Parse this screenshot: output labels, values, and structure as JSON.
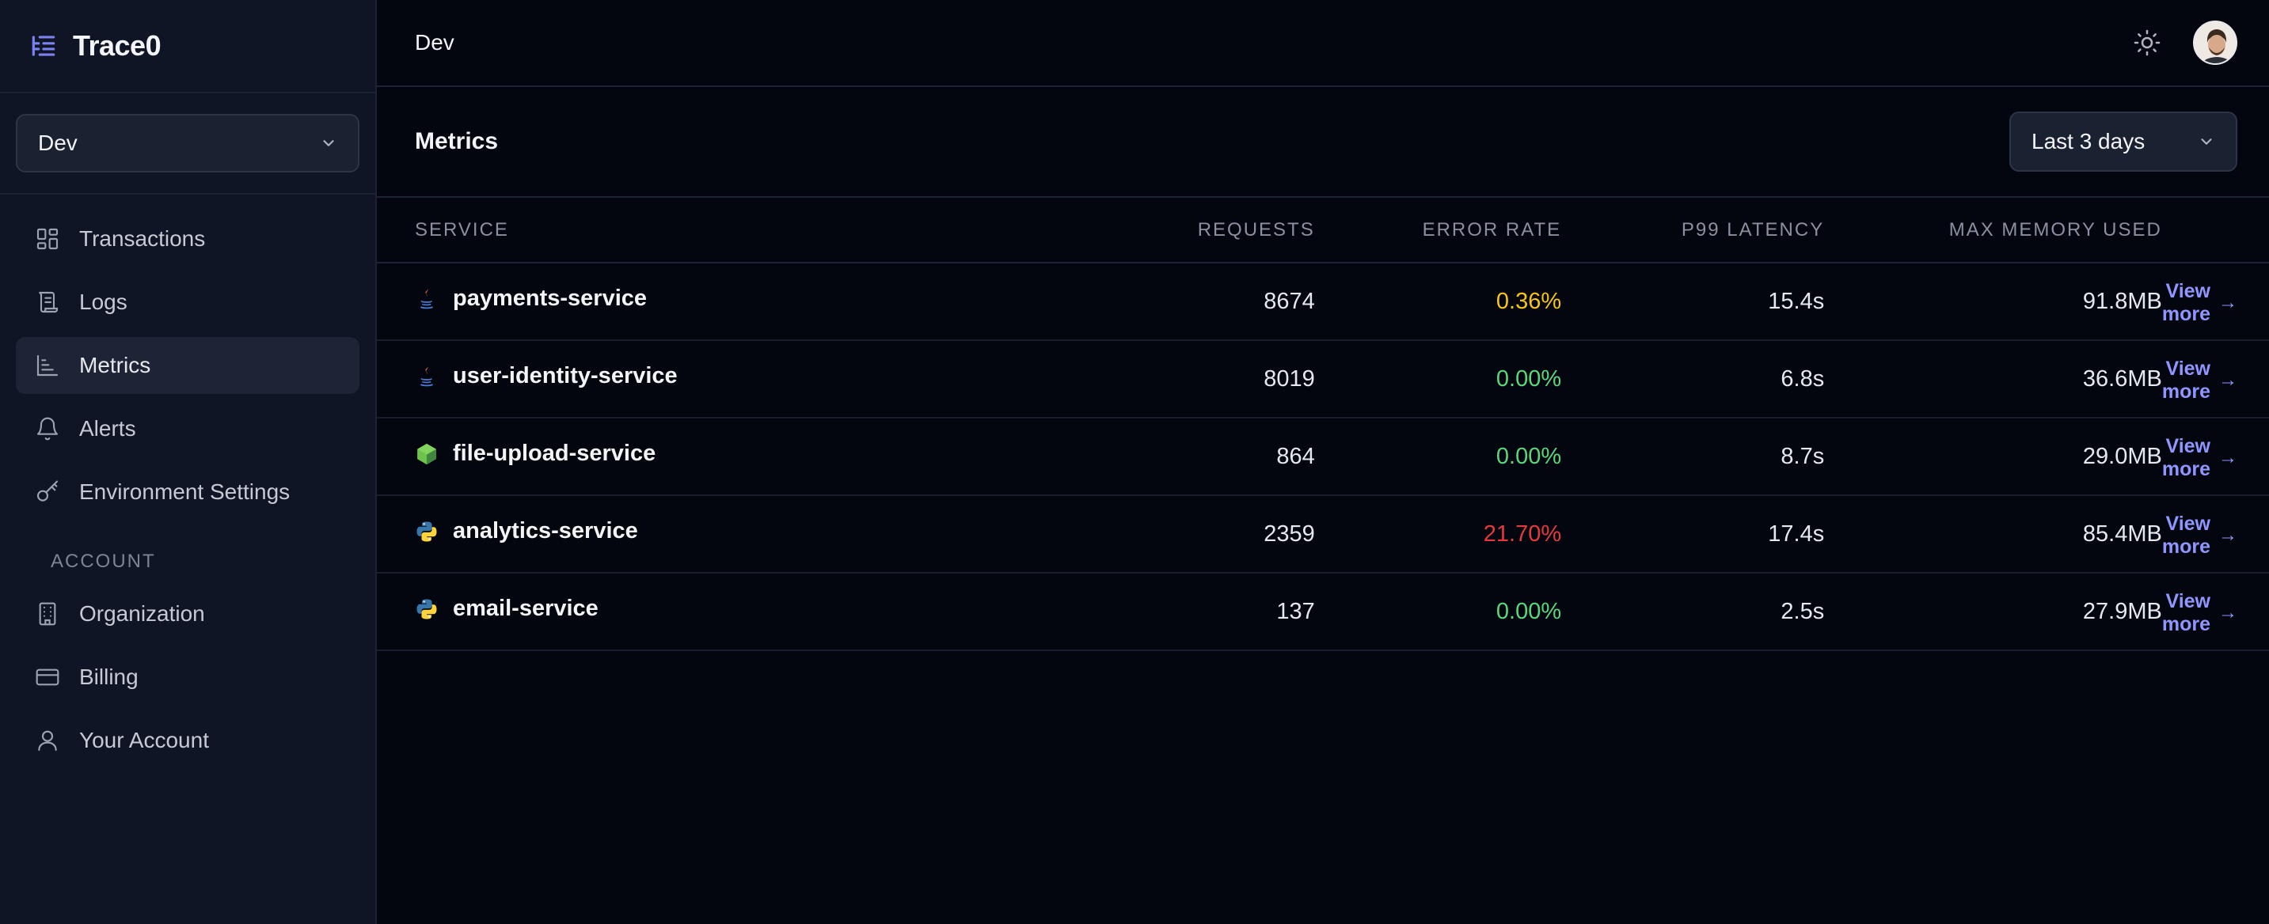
{
  "brand": {
    "name": "Trace0"
  },
  "sidebar": {
    "environment": "Dev",
    "nav": [
      {
        "label": "Transactions",
        "icon": "grid-icon"
      },
      {
        "label": "Logs",
        "icon": "scroll-icon"
      },
      {
        "label": "Metrics",
        "icon": "bar-chart-icon",
        "active": true
      },
      {
        "label": "Alerts",
        "icon": "bell-icon"
      },
      {
        "label": "Environment Settings",
        "icon": "key-icon"
      }
    ],
    "account_label": "ACCOUNT",
    "account": [
      {
        "label": "Organization",
        "icon": "building-icon"
      },
      {
        "label": "Billing",
        "icon": "credit-card-icon"
      },
      {
        "label": "Your Account",
        "icon": "user-icon"
      }
    ]
  },
  "topbar": {
    "breadcrumb": "Dev"
  },
  "metrics": {
    "title": "Metrics",
    "range": "Last 3 days",
    "columns": {
      "service": "SERVICE",
      "requests": "REQUESTS",
      "error_rate": "ERROR RATE",
      "latency": "P99 LATENCY",
      "memory": "MAX MEMORY USED"
    },
    "view_more_label": "View more",
    "rows": [
      {
        "service": "payments-service",
        "lang": "java-icon",
        "requests": "8674",
        "error_rate": "0.36%",
        "error_color": "#f5c518",
        "latency": "15.4s",
        "memory": "91.8MB"
      },
      {
        "service": "user-identity-service",
        "lang": "java-icon",
        "requests": "8019",
        "error_rate": "0.00%",
        "error_color": "#5ad67d",
        "latency": "6.8s",
        "memory": "36.6MB"
      },
      {
        "service": "file-upload-service",
        "lang": "nodejs-icon",
        "requests": "864",
        "error_rate": "0.00%",
        "error_color": "#5ad67d",
        "latency": "8.7s",
        "memory": "29.0MB"
      },
      {
        "service": "analytics-service",
        "lang": "python-icon",
        "requests": "2359",
        "error_rate": "21.70%",
        "error_color": "#e5393f",
        "latency": "17.4s",
        "memory": "85.4MB"
      },
      {
        "service": "email-service",
        "lang": "python-icon",
        "requests": "137",
        "error_rate": "0.00%",
        "error_color": "#5ad67d",
        "latency": "2.5s",
        "memory": "27.9MB"
      }
    ]
  },
  "colors": {
    "accent": "#8f96ff",
    "background": "#03060f",
    "sidebar": "#0f1524"
  }
}
